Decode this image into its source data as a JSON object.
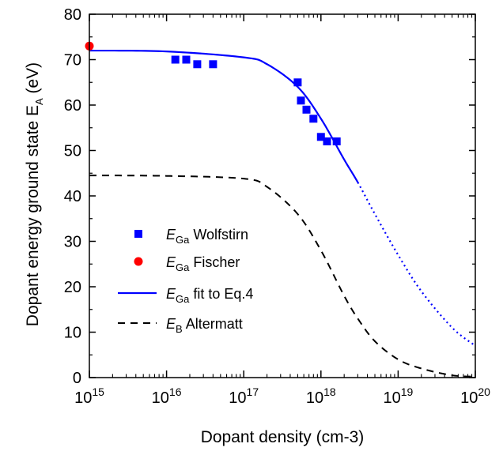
{
  "chart_data": {
    "type": "scatter",
    "xlabel": "Dopant  density (cm-3)",
    "ylabel": "Dopant energy ground state E",
    "ylabel_sub": "A",
    "ylabel_unit": " (eV)",
    "xscale": "log",
    "xlim": [
      1000000000000000.0,
      1e+20
    ],
    "ylim": [
      0,
      80
    ],
    "x_ticks": [
      {
        "base": "10",
        "exp": "15",
        "value": 1000000000000000.0
      },
      {
        "base": "10",
        "exp": "16",
        "value": 1e+16
      },
      {
        "base": "10",
        "exp": "17",
        "value": 1e+17
      },
      {
        "base": "10",
        "exp": "18",
        "value": 1e+18
      },
      {
        "base": "10",
        "exp": "19",
        "value": 1e+19
      },
      {
        "base": "10",
        "exp": "20",
        "value": 1e+20
      }
    ],
    "y_ticks": [
      "0",
      "10",
      "20",
      "30",
      "40",
      "50",
      "60",
      "70",
      "80"
    ],
    "grid": false,
    "legend_position": "lower-left",
    "series": [
      {
        "name": "E_Ga Wolfstirn",
        "label_main": "E",
        "label_sub": "Ga",
        "label_rest": " Wolfstirn",
        "kind": "marker-square",
        "color": "#0000ff",
        "points": [
          [
            1.3e+16,
            70
          ],
          [
            1.8e+16,
            70
          ],
          [
            2.5e+16,
            69
          ],
          [
            4e+16,
            69
          ],
          [
            5e+17,
            65
          ],
          [
            5.5e+17,
            61
          ],
          [
            6.5e+17,
            59
          ],
          [
            8e+17,
            57
          ],
          [
            1e+18,
            53
          ],
          [
            1.2e+18,
            52
          ],
          [
            1.6e+18,
            52
          ]
        ]
      },
      {
        "name": "E_Ga Fischer",
        "label_main": "E",
        "label_sub": "Ga",
        "label_rest": " Fischer",
        "kind": "marker-circle",
        "color": "#ff0000",
        "points": [
          [
            1000000000000000.0,
            73
          ]
        ]
      },
      {
        "name": "E_Ga fit to Eq.4",
        "label_main": "E",
        "label_sub": "Ga",
        "label_rest": " fit to Eq.4",
        "kind": "line-solid-then-dotted",
        "color": "#0000ff",
        "dotted_after_x": 3e+18,
        "points": [
          [
            1000000000000000.0,
            72
          ],
          [
            1e+16,
            71.8
          ],
          [
            1e+17,
            70.5
          ],
          [
            2e+17,
            69
          ],
          [
            5e+17,
            64
          ],
          [
            1e+18,
            57
          ],
          [
            2e+18,
            48
          ],
          [
            3e+18,
            43
          ],
          [
            5e+18,
            36
          ],
          [
            1e+19,
            27
          ],
          [
            2e+19,
            19
          ],
          [
            5e+19,
            11
          ],
          [
            1e+20,
            7
          ]
        ]
      },
      {
        "name": "E_B Altermatt",
        "label_main": "E",
        "label_sub": "B",
        "label_rest": " Altermatt",
        "kind": "line-dashed",
        "color": "#000000",
        "points": [
          [
            1000000000000000.0,
            44.5
          ],
          [
            1e+16,
            44.4
          ],
          [
            1e+17,
            43.8
          ],
          [
            2e+17,
            42
          ],
          [
            5e+17,
            36
          ],
          [
            1e+18,
            28
          ],
          [
            2e+18,
            18
          ],
          [
            3e+18,
            13
          ],
          [
            5e+18,
            8
          ],
          [
            1e+19,
            4
          ],
          [
            2e+19,
            2
          ],
          [
            5e+19,
            0.5
          ],
          [
            1e+20,
            0.2
          ]
        ]
      }
    ]
  }
}
